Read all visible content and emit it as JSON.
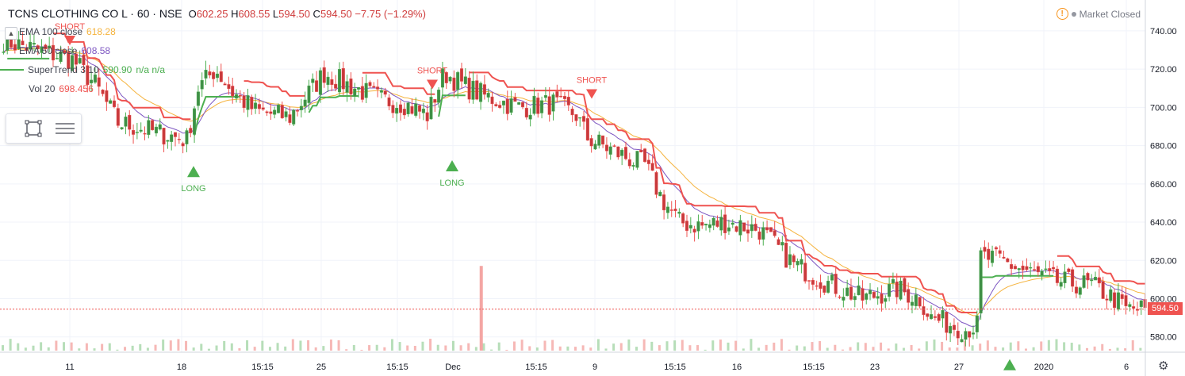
{
  "header": {
    "symbol": "TCNS CLOTHING CO L · 60 · NSE",
    "open_label": "O",
    "open": "602.25",
    "high_label": "H",
    "high": "608.55",
    "low_label": "L",
    "low": "594.50",
    "close_label": "C",
    "close": "594.50",
    "change": "−7.75 (−1.29%)"
  },
  "legends": [
    {
      "name": "EMA 100 close",
      "value": "618.28",
      "color": "#f5b33d"
    },
    {
      "name": "EMA 50 close",
      "value": "608.58",
      "color": "#7e57c2"
    },
    {
      "name": "SuperTrend 3 10",
      "value": "590.90",
      "extra": "n/a  n/a",
      "color": "#4caf50"
    },
    {
      "name": "Vol 20",
      "value": "698.456",
      "color": "#ef5350"
    }
  ],
  "status": {
    "label": "Market Closed",
    "warn_icon": "warning-icon"
  },
  "last_price_label": "594.50",
  "colors": {
    "up": "#4caf50",
    "down": "#ef5350",
    "body_up": "#3f8f46",
    "body_down": "#c8393c",
    "ema100": "#f5b33d",
    "ema50": "#7e57c2",
    "st_up": "#4caf50",
    "st_down": "#ef5350"
  },
  "chart_data": {
    "type": "candlestick",
    "y_ticks": [
      580,
      600,
      620,
      640,
      660,
      680,
      700,
      720,
      740
    ],
    "y_tick_labels": [
      "580.00",
      "600.00",
      "620.00",
      "640.00",
      "660.00",
      "680.00",
      "700.00",
      "720.00",
      "740.00"
    ],
    "ylim": [
      572,
      752
    ],
    "x_labels": [
      "11",
      "18",
      "15:15",
      "25",
      "15:15",
      "Dec",
      "15:15",
      "9",
      "15:15",
      "16",
      "15:15",
      "23",
      "27",
      "2020",
      "6"
    ],
    "signals": [
      {
        "type": "short",
        "label": "SHORT",
        "price": 735
      },
      {
        "type": "long",
        "label": "LONG",
        "price": 676
      },
      {
        "type": "short",
        "label": "SHORT",
        "price": 712
      },
      {
        "type": "long",
        "label": "LONG",
        "price": 679
      },
      {
        "type": "short",
        "label": "SHORT",
        "price": 707
      },
      {
        "type": "long",
        "label": "",
        "price": 575
      }
    ],
    "current_price": 594.5,
    "close_path": [
      [
        0,
        735
      ],
      [
        0.06,
        725
      ],
      [
        0.08,
        712
      ],
      [
        0.1,
        692
      ],
      [
        0.14,
        686
      ],
      [
        0.16,
        683
      ],
      [
        0.17,
        710
      ],
      [
        0.185,
        720
      ],
      [
        0.2,
        708
      ],
      [
        0.22,
        698
      ],
      [
        0.25,
        695
      ],
      [
        0.28,
        718
      ],
      [
        0.3,
        712
      ],
      [
        0.33,
        704
      ],
      [
        0.35,
        702
      ],
      [
        0.37,
        696
      ],
      [
        0.385,
        718
      ],
      [
        0.4,
        712
      ],
      [
        0.42,
        706
      ],
      [
        0.45,
        700
      ],
      [
        0.48,
        702
      ],
      [
        0.5,
        696
      ],
      [
        0.51,
        684
      ],
      [
        0.53,
        678
      ],
      [
        0.55,
        672
      ],
      [
        0.56,
        670
      ],
      [
        0.575,
        652
      ],
      [
        0.59,
        640
      ],
      [
        0.61,
        638
      ],
      [
        0.63,
        640
      ],
      [
        0.66,
        636
      ],
      [
        0.67,
        630
      ],
      [
        0.69,
        618
      ],
      [
        0.72,
        608
      ],
      [
        0.75,
        600
      ],
      [
        0.78,
        605
      ],
      [
        0.8,
        600
      ],
      [
        0.81,
        590
      ],
      [
        0.83,
        586
      ],
      [
        0.84,
        584
      ],
      [
        0.85,
        586
      ],
      [
        0.852,
        622
      ],
      [
        0.87,
        620
      ],
      [
        0.89,
        615
      ],
      [
        0.92,
        609
      ],
      [
        0.95,
        607
      ],
      [
        0.97,
        600
      ],
      [
        0.98,
        594.5
      ]
    ],
    "volume_spikes": [
      {
        "pos": 0.565,
        "value": 698456
      }
    ],
    "volume_scale_max": 700000
  }
}
